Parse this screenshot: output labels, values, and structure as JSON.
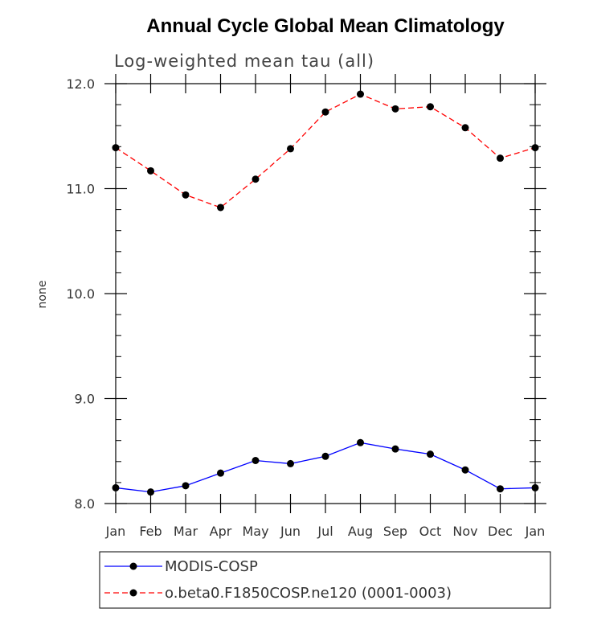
{
  "chart_data": {
    "type": "line",
    "title": "Annual Cycle Global Mean Climatology",
    "subtitle": "Log-weighted mean tau (all)",
    "xlabel": "",
    "ylabel": "none",
    "ylim": [
      8.0,
      12.0
    ],
    "yticks": [
      "8.0",
      "9.0",
      "10.0",
      "11.0",
      "12.0"
    ],
    "categories": [
      "Jan",
      "Feb",
      "Mar",
      "Apr",
      "May",
      "Jun",
      "Jul",
      "Aug",
      "Sep",
      "Oct",
      "Nov",
      "Dec",
      "Jan"
    ],
    "series": [
      {
        "name": "MODIS-COSP",
        "color": "#0000ff",
        "dashed": false,
        "values": [
          8.15,
          8.11,
          8.17,
          8.29,
          8.41,
          8.38,
          8.45,
          8.58,
          8.52,
          8.47,
          8.32,
          8.14,
          8.15
        ]
      },
      {
        "name": "o.beta0.F1850COSP.ne120 (0001-0003)",
        "color": "#ff0000",
        "dashed": true,
        "values": [
          11.39,
          11.17,
          10.94,
          10.82,
          11.09,
          11.38,
          11.73,
          11.9,
          11.76,
          11.78,
          11.58,
          11.29,
          11.39
        ]
      }
    ],
    "legend_position": "bottom"
  }
}
